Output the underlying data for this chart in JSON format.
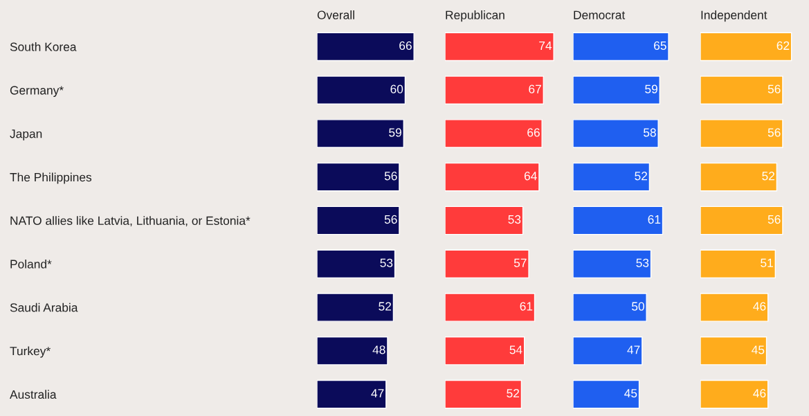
{
  "chart_data": [
    {
      "type": "bar",
      "orientation": "horizontal",
      "title": "Overall",
      "categories": [
        "South Korea",
        "Germany*",
        "Japan",
        "The Philippines",
        "NATO allies like Latvia, Lithuania, or Estonia*",
        "Poland*",
        "Saudi Arabia",
        "Turkey*",
        "Australia"
      ],
      "values": [
        66,
        60,
        59,
        56,
        56,
        53,
        52,
        48,
        47
      ],
      "color": "#0b0b5a",
      "data_labels": true,
      "tick_labels": "y"
    },
    {
      "type": "bar",
      "orientation": "horizontal",
      "title": "Republican",
      "categories": [
        null,
        null,
        null,
        null,
        null,
        null,
        null,
        null,
        null
      ],
      "values": [
        74,
        67,
        66,
        64,
        53,
        57,
        61,
        54,
        52
      ],
      "color": "#ff3b3b",
      "data_labels": true,
      "tick_labels": false
    },
    {
      "type": "bar",
      "orientation": "horizontal",
      "title": "Democrat",
      "categories": [
        null,
        null,
        null,
        null,
        null,
        null,
        null,
        null,
        null
      ],
      "values": [
        65,
        59,
        58,
        52,
        61,
        53,
        50,
        47,
        45
      ],
      "color": "#1f5ff0",
      "data_labels": true,
      "tick_labels": false
    },
    {
      "type": "bar",
      "orientation": "horizontal",
      "title": "Independent",
      "categories": [
        null,
        null,
        null,
        null,
        null,
        null,
        null,
        null,
        null
      ],
      "values": [
        62,
        56,
        56,
        52,
        56,
        51,
        46,
        45,
        46
      ],
      "color": "#ffac1c",
      "data_labels": true,
      "tick_labels": false
    }
  ]
}
